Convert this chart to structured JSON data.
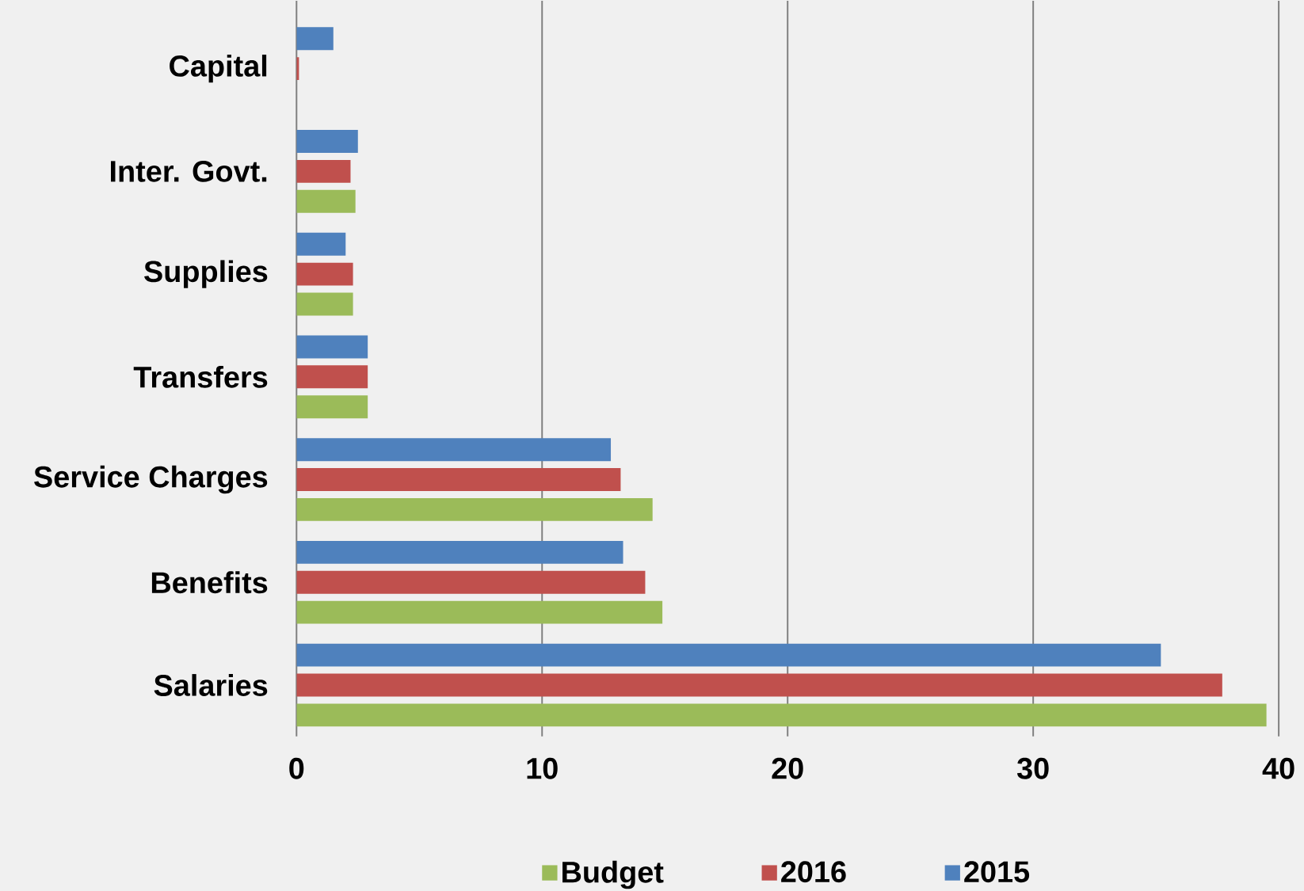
{
  "chart_data": {
    "type": "bar",
    "orientation": "horizontal",
    "categories": [
      "Capital",
      "Inter. Govt.",
      "Supplies",
      "Transfers",
      "Service Charges",
      "Benefits",
      "Salaries"
    ],
    "series": [
      {
        "name": "Budget",
        "color": "#9bbb59",
        "values": [
          null,
          2.4,
          2.3,
          2.9,
          14.5,
          14.9,
          39.5
        ]
      },
      {
        "name": "2016",
        "color": "#c0504d",
        "values": [
          0.1,
          2.2,
          2.3,
          2.9,
          13.2,
          14.2,
          37.7
        ]
      },
      {
        "name": "2015",
        "color": "#4f81bd",
        "values": [
          1.5,
          2.5,
          2.0,
          2.9,
          12.8,
          13.3,
          35.2
        ]
      }
    ],
    "xlim": [
      0,
      40
    ],
    "xticks": [
      0,
      10,
      20,
      30,
      40
    ],
    "grid": "x",
    "legend": "bottom"
  }
}
